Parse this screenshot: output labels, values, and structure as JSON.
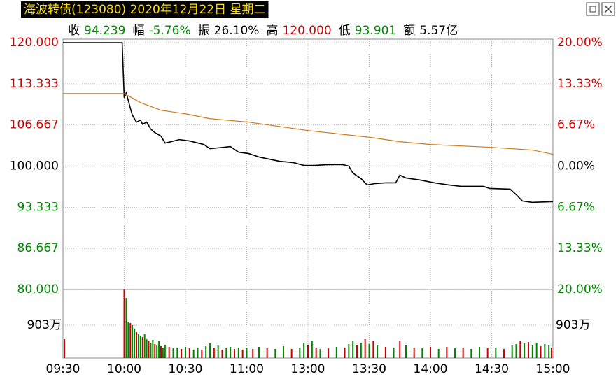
{
  "header": {
    "title": "海波转债(123080) 2020年12月22日 星期二",
    "stats": [
      {
        "label": "收",
        "value": "94.239",
        "color": "#008800"
      },
      {
        "label": "幅",
        "value": "-5.76%",
        "color": "#008800"
      },
      {
        "label": "振",
        "value": "26.10%",
        "color": "#000000"
      },
      {
        "label": "高",
        "value": "120.000",
        "color": "#d00000"
      },
      {
        "label": "低",
        "value": "93.901",
        "color": "#008800"
      },
      {
        "label": "额",
        "value": "5.57亿",
        "color": "#000000"
      }
    ]
  },
  "up_color": "#d00000",
  "down_color": "#008800",
  "chart_data": [
    {
      "type": "line",
      "grid": true,
      "xlim": [
        0,
        240
      ],
      "xticks": [
        {
          "value": 0,
          "label": "09:30"
        },
        {
          "value": 30,
          "label": "10:00"
        },
        {
          "value": 60,
          "label": "10:30"
        },
        {
          "value": 90,
          "label": "11:00"
        },
        {
          "value": 120,
          "label": "13:00"
        },
        {
          "value": 150,
          "label": "13:30"
        },
        {
          "value": 180,
          "label": "14:00"
        },
        {
          "value": 210,
          "label": "14:30"
        },
        {
          "value": 240,
          "label": "15:00"
        }
      ],
      "ylim": [
        80,
        120
      ],
      "yticks": [
        {
          "value": 120,
          "label": "120.000"
        },
        {
          "value": 113.333,
          "label": "113.333"
        },
        {
          "value": 106.667,
          "label": "106.667"
        },
        {
          "value": 100,
          "label": "100.000"
        },
        {
          "value": 93.333,
          "label": "93.333"
        },
        {
          "value": 86.667,
          "label": "86.667"
        },
        {
          "value": 80,
          "label": "80.000"
        }
      ],
      "y2lim": [
        -20,
        20
      ],
      "y2ticks": [
        {
          "value": 20,
          "label": "20.00%"
        },
        {
          "value": 13.33,
          "label": "13.33%"
        },
        {
          "value": 6.67,
          "label": "6.67%"
        },
        {
          "value": 0,
          "label": "0.00%"
        },
        {
          "value": -6.67,
          "label": "6.67%"
        },
        {
          "value": -13.33,
          "label": "13.33%"
        },
        {
          "value": -20,
          "label": "20.00%"
        }
      ],
      "series": [
        {
          "color": "#000000",
          "x": [
            0,
            29,
            30,
            31,
            33,
            34,
            36,
            38,
            39,
            41,
            43,
            45,
            48,
            50,
            53,
            57,
            62,
            69,
            72,
            79,
            82,
            86,
            91,
            96,
            101,
            106,
            113,
            118,
            123,
            130,
            137,
            140,
            142,
            146,
            149,
            153,
            158,
            163,
            165,
            168,
            175,
            182,
            189,
            195,
            206,
            209,
            219,
            222,
            225,
            230,
            240
          ],
          "values": [
            120,
            120,
            111.07,
            111.86,
            109.38,
            108.25,
            107.12,
            107.46,
            106.78,
            107.12,
            105.99,
            105.42,
            104.86,
            103.73,
            103.95,
            104.29,
            104.07,
            103.5,
            102.82,
            103.05,
            103.16,
            102.26,
            102.03,
            101.47,
            101.13,
            100.79,
            100.56,
            100.11,
            100.11,
            100.23,
            100.23,
            100,
            98.87,
            97.97,
            96.95,
            97.18,
            97.29,
            97.29,
            98.53,
            98.08,
            97.74,
            97.29,
            96.95,
            96.72,
            96.72,
            96.38,
            96.27,
            95.37,
            94.35,
            94.12,
            94.24
          ]
        },
        {
          "color": "#d07818",
          "x": [
            0,
            30,
            38,
            48,
            60,
            72,
            91,
            120,
            151,
            165,
            180,
            209,
            230,
            240
          ],
          "values": [
            111.75,
            111.75,
            110.28,
            109.04,
            108.47,
            107.68,
            107.12,
            105.76,
            104.63,
            103.95,
            103.5,
            103.05,
            102.6,
            101.92
          ]
        }
      ]
    },
    {
      "type": "bar",
      "grid": true,
      "xlim": [
        0,
        240
      ],
      "ylim": [
        0,
        1883
      ],
      "yticks": [
        {
          "value": 903,
          "label": "903万"
        }
      ],
      "x": [
        0,
        30,
        31,
        32,
        33,
        34,
        35,
        36,
        37,
        38,
        39,
        40,
        41,
        42,
        43,
        44,
        45,
        46,
        47,
        48,
        49,
        50,
        52,
        54,
        56,
        58,
        60,
        62,
        64,
        66,
        68,
        70,
        72,
        74,
        76,
        78,
        80,
        82,
        84,
        86,
        88,
        90,
        93,
        96,
        100,
        104,
        108,
        112,
        116,
        118,
        120,
        122,
        124,
        126,
        130,
        134,
        138,
        140,
        142,
        144,
        146,
        148,
        150,
        152,
        154,
        158,
        162,
        165,
        168,
        172,
        176,
        180,
        184,
        188,
        192,
        196,
        200,
        204,
        208,
        212,
        216,
        220,
        222,
        224,
        226,
        228,
        230,
        232,
        234,
        236,
        238,
        240
      ],
      "values": [
        518,
        1880,
        1651,
        998,
        960,
        902,
        806,
        710,
        653,
        614,
        576,
        653,
        518,
        461,
        422,
        499,
        384,
        346,
        461,
        326,
        288,
        365,
        307,
        269,
        288,
        250,
        307,
        269,
        230,
        288,
        230,
        326,
        403,
        269,
        346,
        230,
        288,
        307,
        250,
        288,
        230,
        288,
        250,
        307,
        269,
        250,
        326,
        250,
        288,
        422,
        365,
        461,
        288,
        250,
        269,
        307,
        288,
        384,
        461,
        346,
        422,
        518,
        384,
        461,
        346,
        307,
        288,
        480,
        346,
        288,
        269,
        307,
        250,
        307,
        269,
        288,
        250,
        307,
        269,
        288,
        250,
        346,
        384,
        461,
        403,
        442,
        365,
        422,
        326,
        384,
        346,
        269
      ],
      "directions": [
        "up",
        "up",
        "down",
        "down",
        "up",
        "down",
        "down",
        "up",
        "down",
        "down",
        "up",
        "down",
        "down",
        "up",
        "down",
        "down",
        "up",
        "down",
        "down",
        "up",
        "down",
        "down",
        "up",
        "down",
        "down",
        "up",
        "down",
        "up",
        "down",
        "down",
        "up",
        "down",
        "down",
        "up",
        "down",
        "up",
        "down",
        "down",
        "up",
        "down",
        "up",
        "down",
        "up",
        "down",
        "up",
        "down",
        "down",
        "up",
        "down",
        "down",
        "up",
        "down",
        "up",
        "down",
        "up",
        "down",
        "up",
        "down",
        "down",
        "up",
        "down",
        "up",
        "down",
        "up",
        "down",
        "up",
        "down",
        "up",
        "down",
        "up",
        "down",
        "up",
        "down",
        "up",
        "down",
        "up",
        "down",
        "down",
        "up",
        "down",
        "up",
        "down",
        "down",
        "up",
        "down",
        "up",
        "down",
        "down",
        "up",
        "down",
        "down",
        "up"
      ]
    }
  ]
}
